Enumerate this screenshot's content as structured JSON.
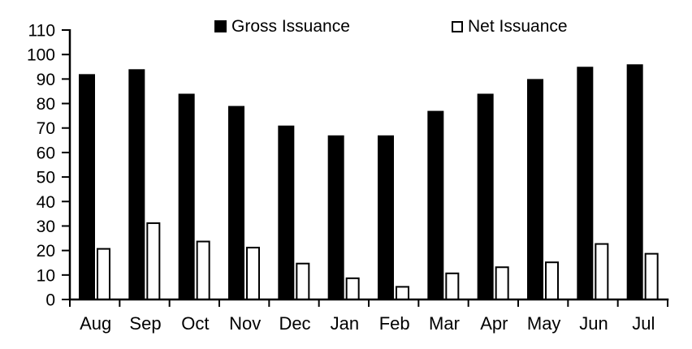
{
  "chart_data": {
    "type": "bar",
    "title": "",
    "xlabel": "",
    "ylabel": "",
    "categories": [
      "Aug",
      "Sep",
      "Oct",
      "Nov",
      "Dec",
      "Jan",
      "Feb",
      "Mar",
      "Apr",
      "May",
      "Jun",
      "Jul"
    ],
    "series": [
      {
        "name": "Gross Issuance",
        "fill": "#000000",
        "stroke": "#000000",
        "values": [
          92,
          94,
          84,
          79,
          71,
          67,
          67,
          77,
          84,
          90,
          95,
          96
        ]
      },
      {
        "name": "Net Issuance",
        "fill": "#ffffff",
        "stroke": "#000000",
        "values": [
          21,
          31.5,
          24,
          21.5,
          15,
          9,
          5.5,
          11,
          13.5,
          15.5,
          23,
          19
        ]
      }
    ],
    "ylim": [
      0,
      110
    ],
    "ytick_step": 10,
    "yticks": [
      0,
      10,
      20,
      30,
      40,
      50,
      60,
      70,
      80,
      90,
      100,
      110
    ],
    "grid": false,
    "legend_position": "top",
    "axis_color": "#000000",
    "text_color": "#000000",
    "background": "#ffffff"
  }
}
